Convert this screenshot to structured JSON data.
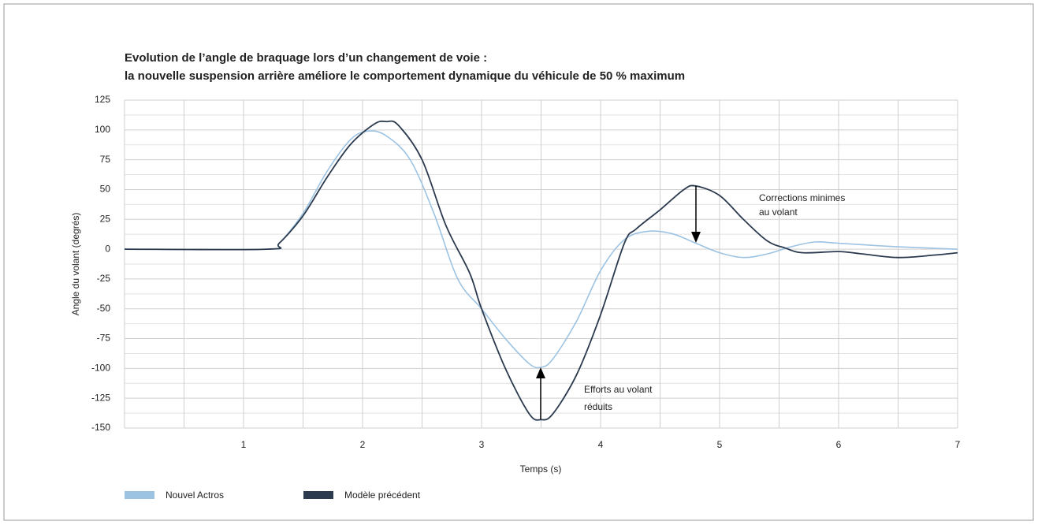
{
  "chart_data": {
    "type": "line",
    "title": "Evolution de l’angle de braquage lors d’un changement de voie :",
    "subtitle": "la nouvelle suspension arrière améliore le comportement dynamique du véhicule de 50 % maximum",
    "xlabel": "Temps (s)",
    "ylabel": "Angle du volant (degrés)",
    "xlim": [
      0,
      7
    ],
    "ylim": [
      -150,
      125
    ],
    "xticks": [
      1,
      2,
      3,
      4,
      5,
      6,
      7
    ],
    "yticks": [
      -150,
      -125,
      -100,
      -75,
      -50,
      -25,
      0,
      25,
      50,
      75,
      100,
      125
    ],
    "xminor": [
      0.5,
      1.5,
      2.5,
      3.5,
      4.5,
      5.5,
      6.5
    ],
    "yminor": [
      -137.5,
      -112.5,
      -87.5,
      -62.5,
      -37.5,
      -12.5,
      12.5,
      37.5,
      62.5,
      87.5,
      112.5
    ],
    "grid": true,
    "legend": "bottom-left",
    "series": [
      {
        "name": "Nouvel Actros",
        "color": "#9dc3e3",
        "x": [
          0,
          1.2,
          1.3,
          1.5,
          1.7,
          1.9,
          2.05,
          2.2,
          2.4,
          2.6,
          2.8,
          3.0,
          3.2,
          3.4,
          3.5,
          3.6,
          3.8,
          4.0,
          4.2,
          4.4,
          4.6,
          4.8,
          5.0,
          5.2,
          5.4,
          5.6,
          5.8,
          6.0,
          6.5,
          7
        ],
        "values": [
          0,
          0,
          5,
          30,
          65,
          92,
          99,
          95,
          75,
          30,
          -25,
          -50,
          -75,
          -96,
          -99,
          -92,
          -60,
          -18,
          8,
          15,
          13,
          5,
          -3,
          -7,
          -4,
          2,
          6,
          5,
          2,
          0
        ]
      },
      {
        "name": "Modèle précédent",
        "color": "#2b3a4e",
        "x": [
          0,
          1.2,
          1.3,
          1.5,
          1.7,
          1.9,
          2.1,
          2.2,
          2.3,
          2.5,
          2.7,
          2.9,
          3.0,
          3.2,
          3.4,
          3.5,
          3.6,
          3.8,
          4.0,
          4.2,
          4.3,
          4.5,
          4.7,
          4.8,
          5.0,
          5.2,
          5.4,
          5.55,
          5.7,
          6.0,
          6.2,
          6.5,
          6.8,
          7
        ],
        "values": [
          0,
          0,
          5,
          28,
          60,
          88,
          105,
          107,
          104,
          75,
          20,
          -20,
          -50,
          -100,
          -138,
          -143,
          -138,
          -105,
          -55,
          5,
          17,
          33,
          50,
          53,
          45,
          25,
          7,
          1,
          -3,
          -2,
          -4,
          -7,
          -5,
          -3
        ]
      }
    ],
    "annotations": [
      {
        "text": [
          "Efforts au volant",
          "réduits"
        ]
      },
      {
        "text": [
          "Corrections minimes",
          "au volant"
        ]
      }
    ]
  }
}
